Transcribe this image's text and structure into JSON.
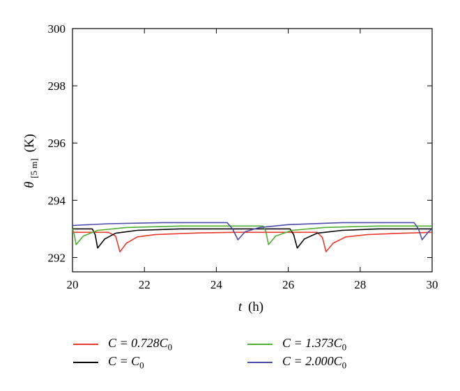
{
  "chart_data": {
    "type": "line",
    "title": "",
    "xlabel": {
      "var": "t",
      "unit": "(h)"
    },
    "ylabel": {
      "var": "θ",
      "sub": "[5 m]",
      "unit": "(K)"
    },
    "xlim": [
      20,
      30
    ],
    "ylim": [
      291.5,
      300
    ],
    "xticks": [
      "20",
      "22",
      "24",
      "26",
      "28",
      "30"
    ],
    "yticks": [
      "292",
      "294",
      "296",
      "298",
      "300"
    ],
    "grid": false,
    "legend_position": "bottom",
    "series": [
      {
        "name": "C = 0.728C0",
        "label_main": "C = 0.728C",
        "label_sub": "0",
        "color": "#e8382b",
        "points": [
          [
            20,
            292.88
          ],
          [
            21.0,
            292.88
          ],
          [
            21.2,
            292.75
          ],
          [
            21.32,
            292.2
          ],
          [
            21.5,
            292.5
          ],
          [
            21.8,
            292.72
          ],
          [
            22.3,
            292.8
          ],
          [
            23.5,
            292.86
          ],
          [
            24.5,
            292.88
          ],
          [
            26.8,
            292.88
          ],
          [
            26.95,
            292.7
          ],
          [
            27.05,
            292.2
          ],
          [
            27.25,
            292.5
          ],
          [
            27.6,
            292.72
          ],
          [
            28.2,
            292.8
          ],
          [
            29.2,
            292.85
          ],
          [
            30,
            292.88
          ]
        ]
      },
      {
        "name": "C = C0",
        "label_main": "C = C",
        "label_sub": "0",
        "color": "#000000",
        "points": [
          [
            20,
            293.0
          ],
          [
            20.55,
            293.0
          ],
          [
            20.63,
            292.8
          ],
          [
            20.7,
            292.33
          ],
          [
            20.9,
            292.65
          ],
          [
            21.2,
            292.85
          ],
          [
            21.8,
            292.95
          ],
          [
            23,
            293.0
          ],
          [
            26.05,
            293.0
          ],
          [
            26.15,
            292.8
          ],
          [
            26.25,
            292.33
          ],
          [
            26.45,
            292.65
          ],
          [
            26.8,
            292.85
          ],
          [
            27.5,
            292.95
          ],
          [
            28.5,
            293.0
          ],
          [
            30,
            293.0
          ]
        ]
      },
      {
        "name": "C = 1.373C0",
        "label_main": "C = 1.373C",
        "label_sub": "0",
        "color": "#4fad32",
        "points": [
          [
            20,
            293.0
          ],
          [
            20.05,
            292.8
          ],
          [
            20.1,
            292.45
          ],
          [
            20.3,
            292.75
          ],
          [
            20.7,
            292.95
          ],
          [
            21.5,
            293.05
          ],
          [
            23,
            293.1
          ],
          [
            25.3,
            293.1
          ],
          [
            25.38,
            292.9
          ],
          [
            25.45,
            292.45
          ],
          [
            25.65,
            292.75
          ],
          [
            26.1,
            292.95
          ],
          [
            27,
            293.05
          ],
          [
            28.5,
            293.1
          ],
          [
            30,
            293.1
          ]
        ]
      },
      {
        "name": "C = 2.000C0",
        "label_main": "C = 2.000C",
        "label_sub": "0",
        "color": "#4a4aa8",
        "points": [
          [
            20,
            293.12
          ],
          [
            21,
            293.18
          ],
          [
            22.5,
            293.22
          ],
          [
            24.3,
            293.22
          ],
          [
            24.45,
            293.0
          ],
          [
            24.6,
            292.62
          ],
          [
            24.8,
            292.9
          ],
          [
            25.2,
            293.05
          ],
          [
            26,
            293.15
          ],
          [
            27.5,
            293.22
          ],
          [
            29.5,
            293.22
          ],
          [
            29.62,
            293.0
          ],
          [
            29.72,
            292.62
          ],
          [
            29.9,
            292.9
          ],
          [
            30,
            293.0
          ]
        ]
      }
    ]
  }
}
